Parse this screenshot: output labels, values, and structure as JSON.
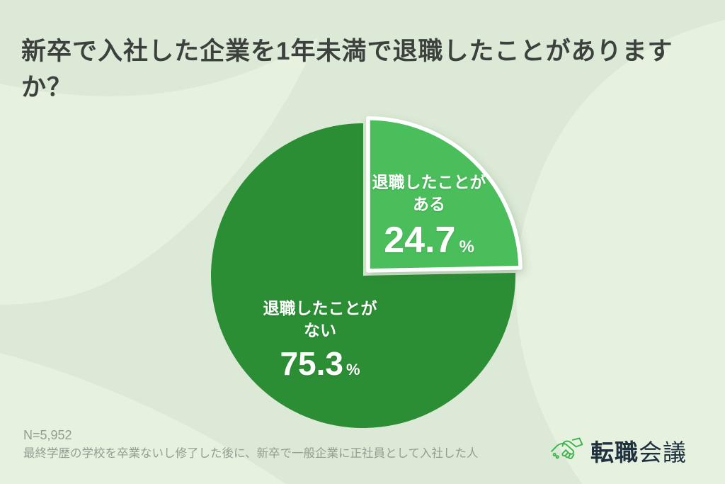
{
  "chart_data": {
    "type": "pie",
    "title": "新卒で入社した企業を1年未満で退職したことがありますか？",
    "start_angle_deg": 0,
    "direction": "clockwise",
    "legend": "none",
    "slices": [
      {
        "label_line1": "退職したことが",
        "label_line2": "ある",
        "value": 24.7,
        "unit": "%",
        "color": "#4CBE5B",
        "exploded": true,
        "text_color": "#ffffff"
      },
      {
        "label_line1": "退職したことが",
        "label_line2": "ない",
        "value": 75.3,
        "unit": "%",
        "color": "#2B8E34",
        "exploded": false,
        "text_color": "#ffffff"
      }
    ],
    "sample_size": "N=5,952",
    "footnote": "最終学歴の学校を卒業ないし修了した後に、新卒で一般企業に正社員として入社した人"
  },
  "brand": {
    "bold_text": "転職",
    "regular_text": "会議"
  },
  "style": {
    "background_base": "#dce9d6",
    "background_swirl": "#e8f3e2",
    "title_color": "#3c413d",
    "footnote_color": "#939e93",
    "brand_text_color": "#20313e",
    "brand_icon_color": "#3eb44f",
    "explode_stroke": "#ffffff"
  }
}
